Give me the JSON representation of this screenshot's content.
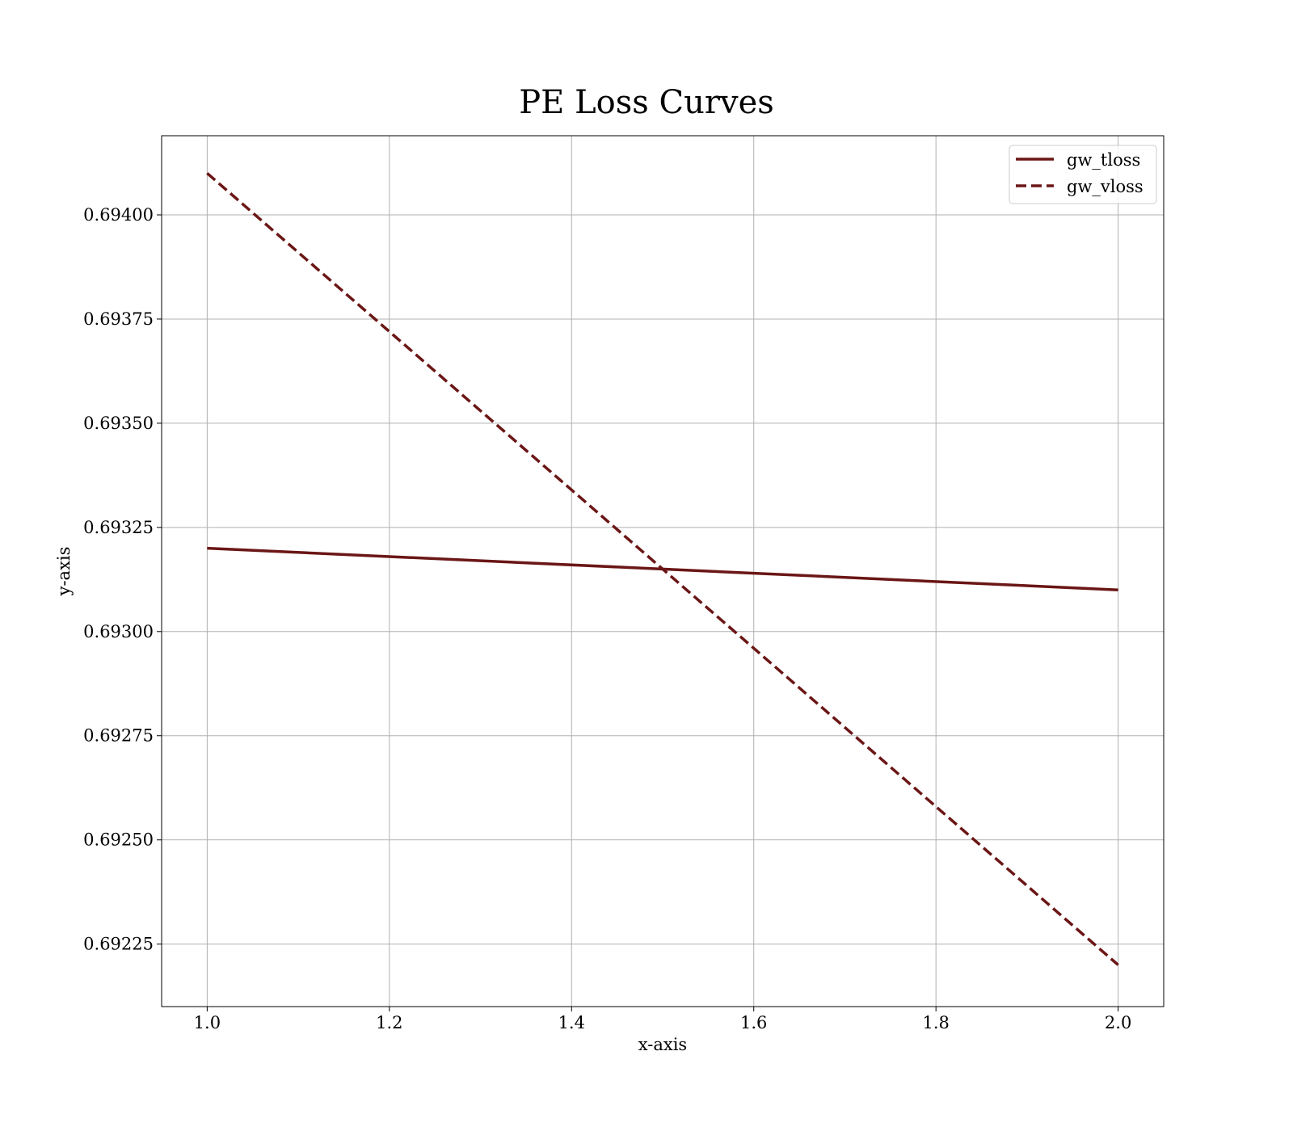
{
  "chart_data": {
    "type": "line",
    "title": "PE Loss Curves",
    "xlabel": "x-axis",
    "ylabel": "y-axis",
    "xlim": [
      0.95,
      2.05
    ],
    "ylim": [
      0.6921,
      0.69419
    ],
    "x_ticks": [
      1.0,
      1.2,
      1.4,
      1.6,
      1.8,
      2.0
    ],
    "x_tick_labels": [
      "1.0",
      "1.2",
      "1.4",
      "1.6",
      "1.8",
      "2.0"
    ],
    "y_ticks": [
      0.69225,
      0.6925,
      0.69275,
      0.693,
      0.69325,
      0.6935,
      0.69375,
      0.694
    ],
    "y_tick_labels": [
      "0.69225",
      "0.69250",
      "0.69275",
      "0.69300",
      "0.69325",
      "0.69350",
      "0.69375",
      "0.69400"
    ],
    "grid": true,
    "legend_position": "top-right",
    "series": [
      {
        "name": "gw_tloss",
        "style": "solid",
        "color": "#6b1616",
        "x": [
          1.0,
          2.0
        ],
        "y": [
          0.6932,
          0.6931
        ]
      },
      {
        "name": "gw_vloss",
        "style": "dashed",
        "color": "#6b1616",
        "x": [
          1.0,
          2.0
        ],
        "y": [
          0.6941,
          0.6922
        ]
      }
    ]
  }
}
